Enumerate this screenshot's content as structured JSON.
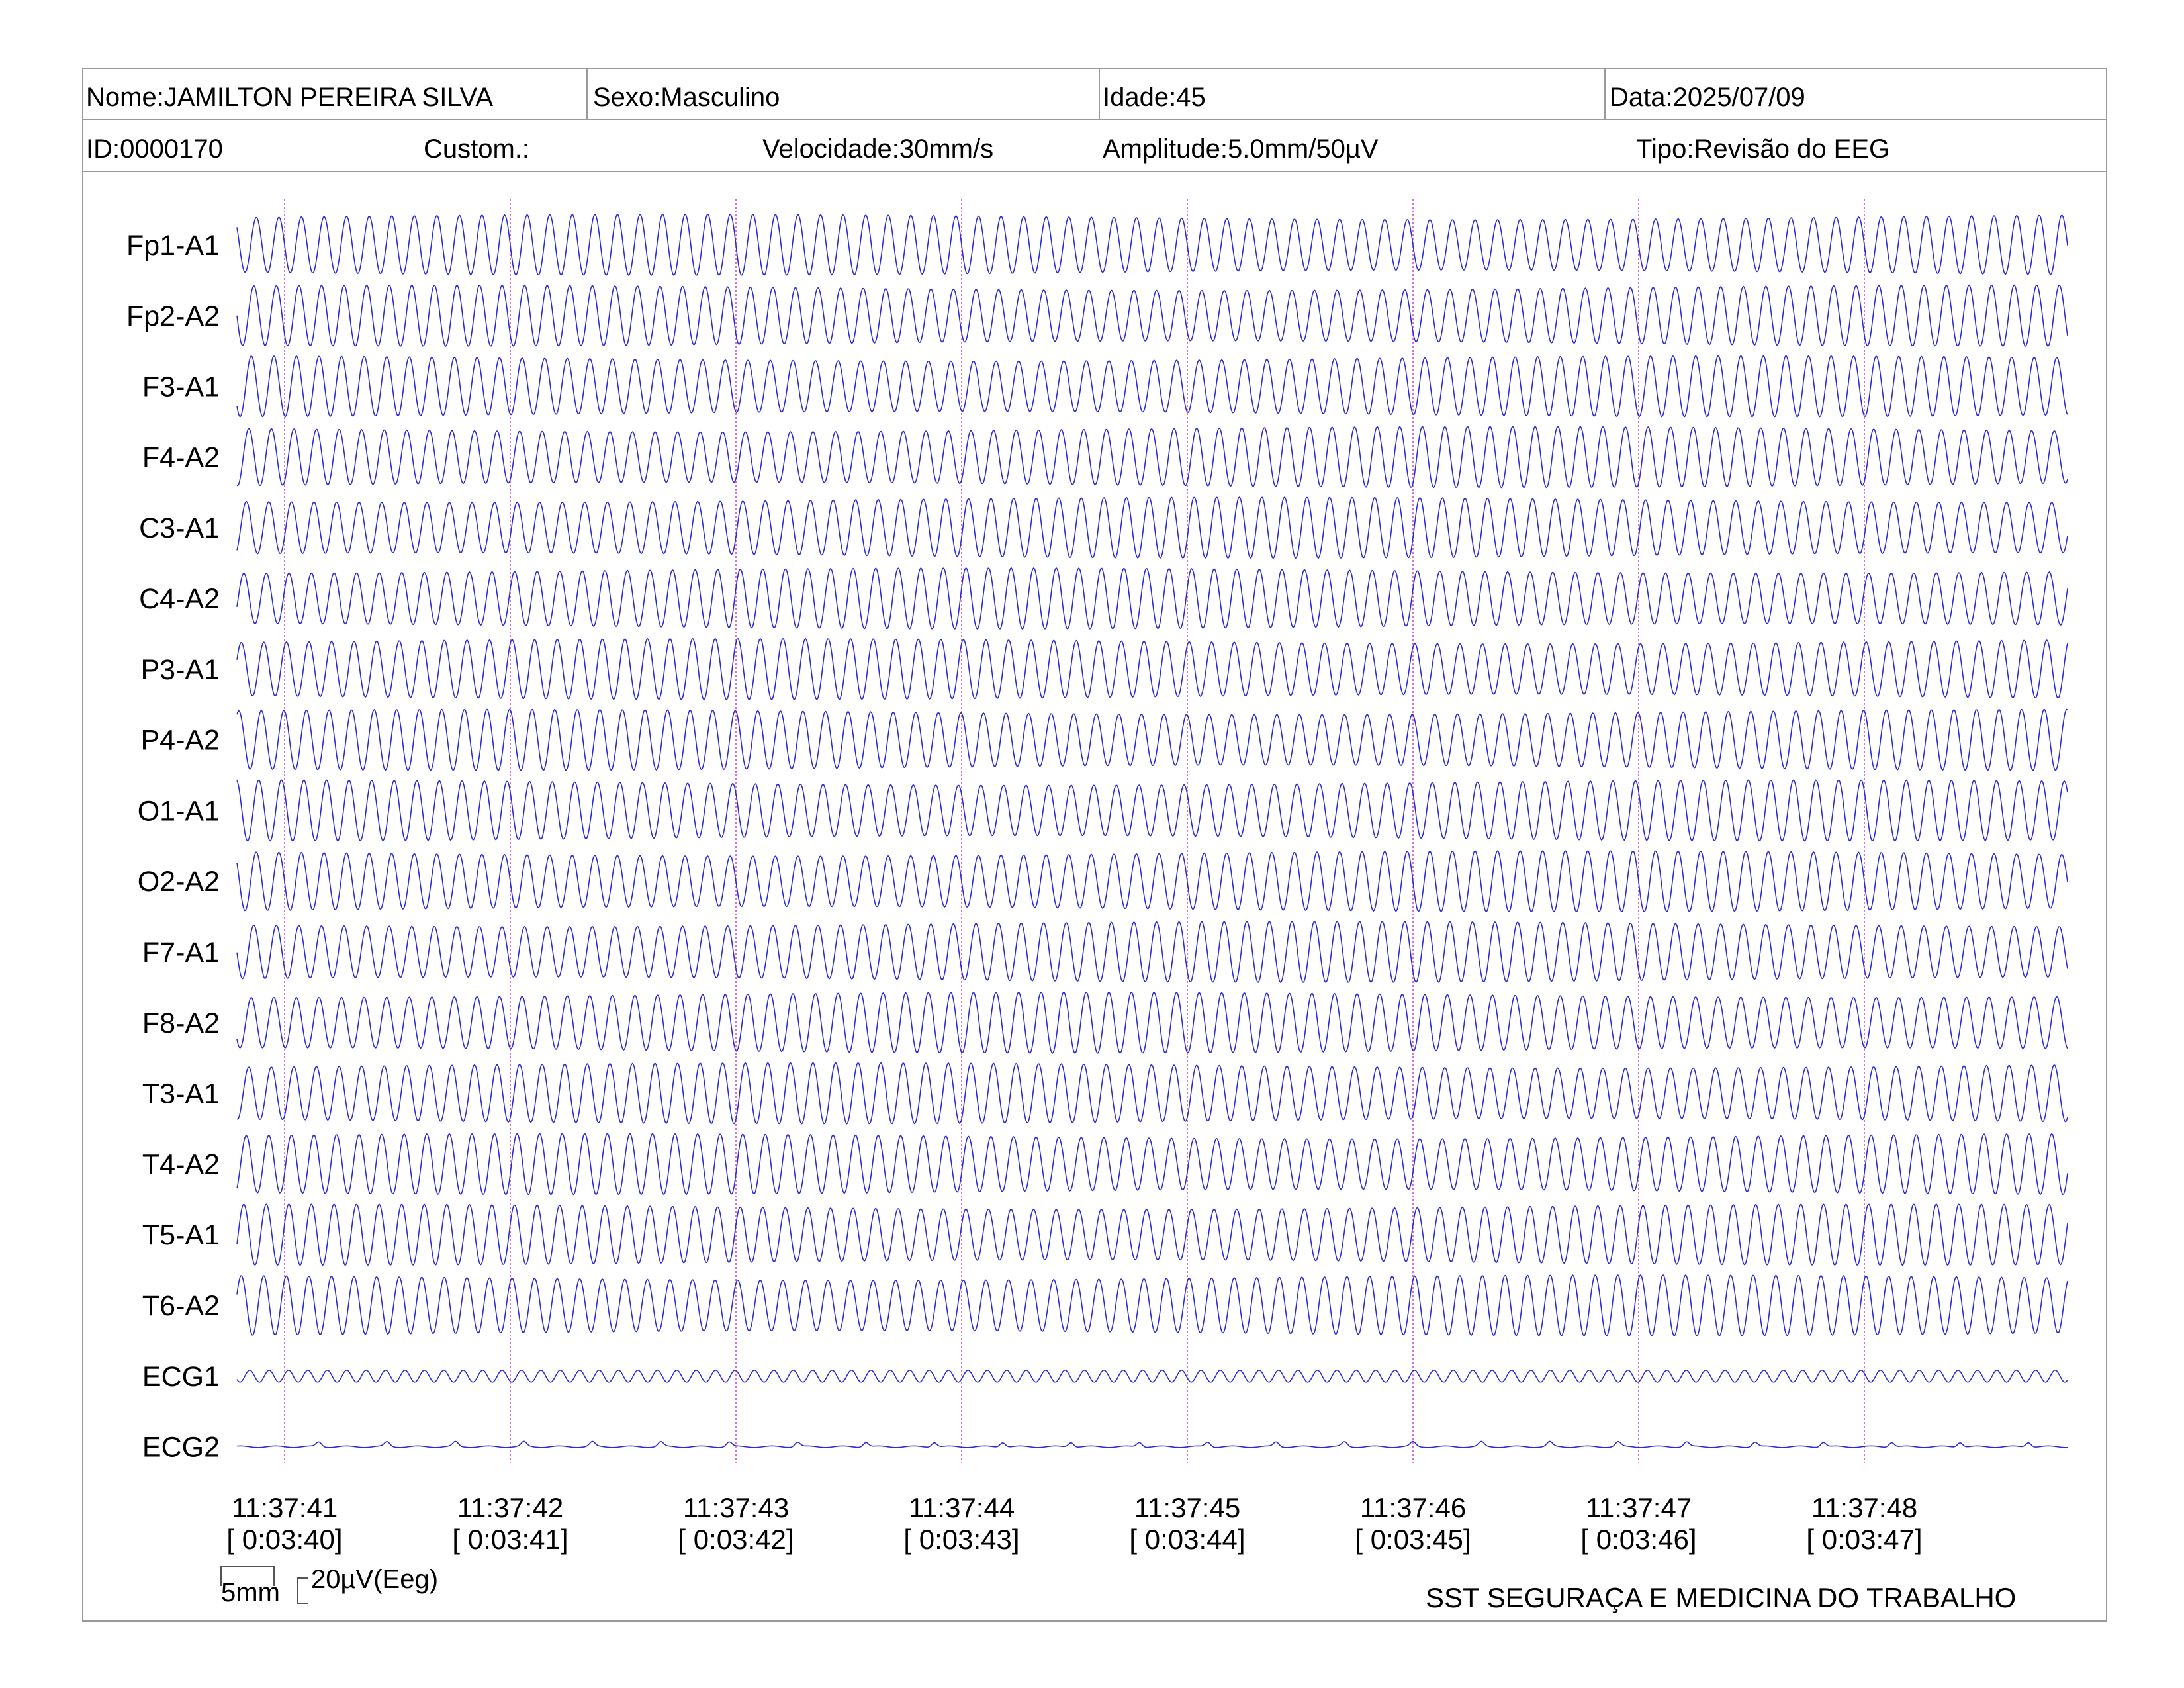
{
  "header": {
    "nome": "Nome:JAMILTON PEREIRA SILVA",
    "sexo": "Sexo:Masculino",
    "idade": "Idade:45",
    "data": "Data:2025/07/09",
    "id": "ID:0000170",
    "custom": "Custom.:",
    "velocidade": "Velocidade:30mm/s",
    "amplitude": "Amplitude:5.0mm/50µV",
    "tipo": "Tipo:Revisão do EEG"
  },
  "chart_data": {
    "type": "line",
    "channels": [
      "Fp1-A1",
      "Fp2-A2",
      "F3-A1",
      "F4-A2",
      "C3-A1",
      "C4-A2",
      "P3-A1",
      "P4-A2",
      "O1-A1",
      "O2-A2",
      "F7-A1",
      "F8-A2",
      "T3-A1",
      "T4-A2",
      "T5-A1",
      "T6-A2",
      "ECG1",
      "ECG2"
    ],
    "time_marks": [
      {
        "clock": "11:37:41",
        "elapsed": "[ 0:03:40]"
      },
      {
        "clock": "11:37:42",
        "elapsed": "[ 0:03:41]"
      },
      {
        "clock": "11:37:43",
        "elapsed": "[ 0:03:42]"
      },
      {
        "clock": "11:37:44",
        "elapsed": "[ 0:03:43]"
      },
      {
        "clock": "11:37:45",
        "elapsed": "[ 0:03:44]"
      },
      {
        "clock": "11:37:46",
        "elapsed": "[ 0:03:45]"
      },
      {
        "clock": "11:37:47",
        "elapsed": "[ 0:03:46]"
      },
      {
        "clock": "11:37:48",
        "elapsed": "[ 0:03:47]"
      }
    ],
    "trace_color": "#2b2bd9",
    "marker_color": "#d24fd2",
    "waveform": {
      "eeg_cycles_per_second": 10,
      "ecg1_cycles_per_second": 7.5,
      "ecg2_cycles_per_second": 3.3
    },
    "grid": false
  },
  "footer": {
    "scale_time": "5mm",
    "scale_amp": "20µV(Eeg)",
    "company": "SST SEGURAÇA E MEDICINA DO TRABALHO"
  }
}
